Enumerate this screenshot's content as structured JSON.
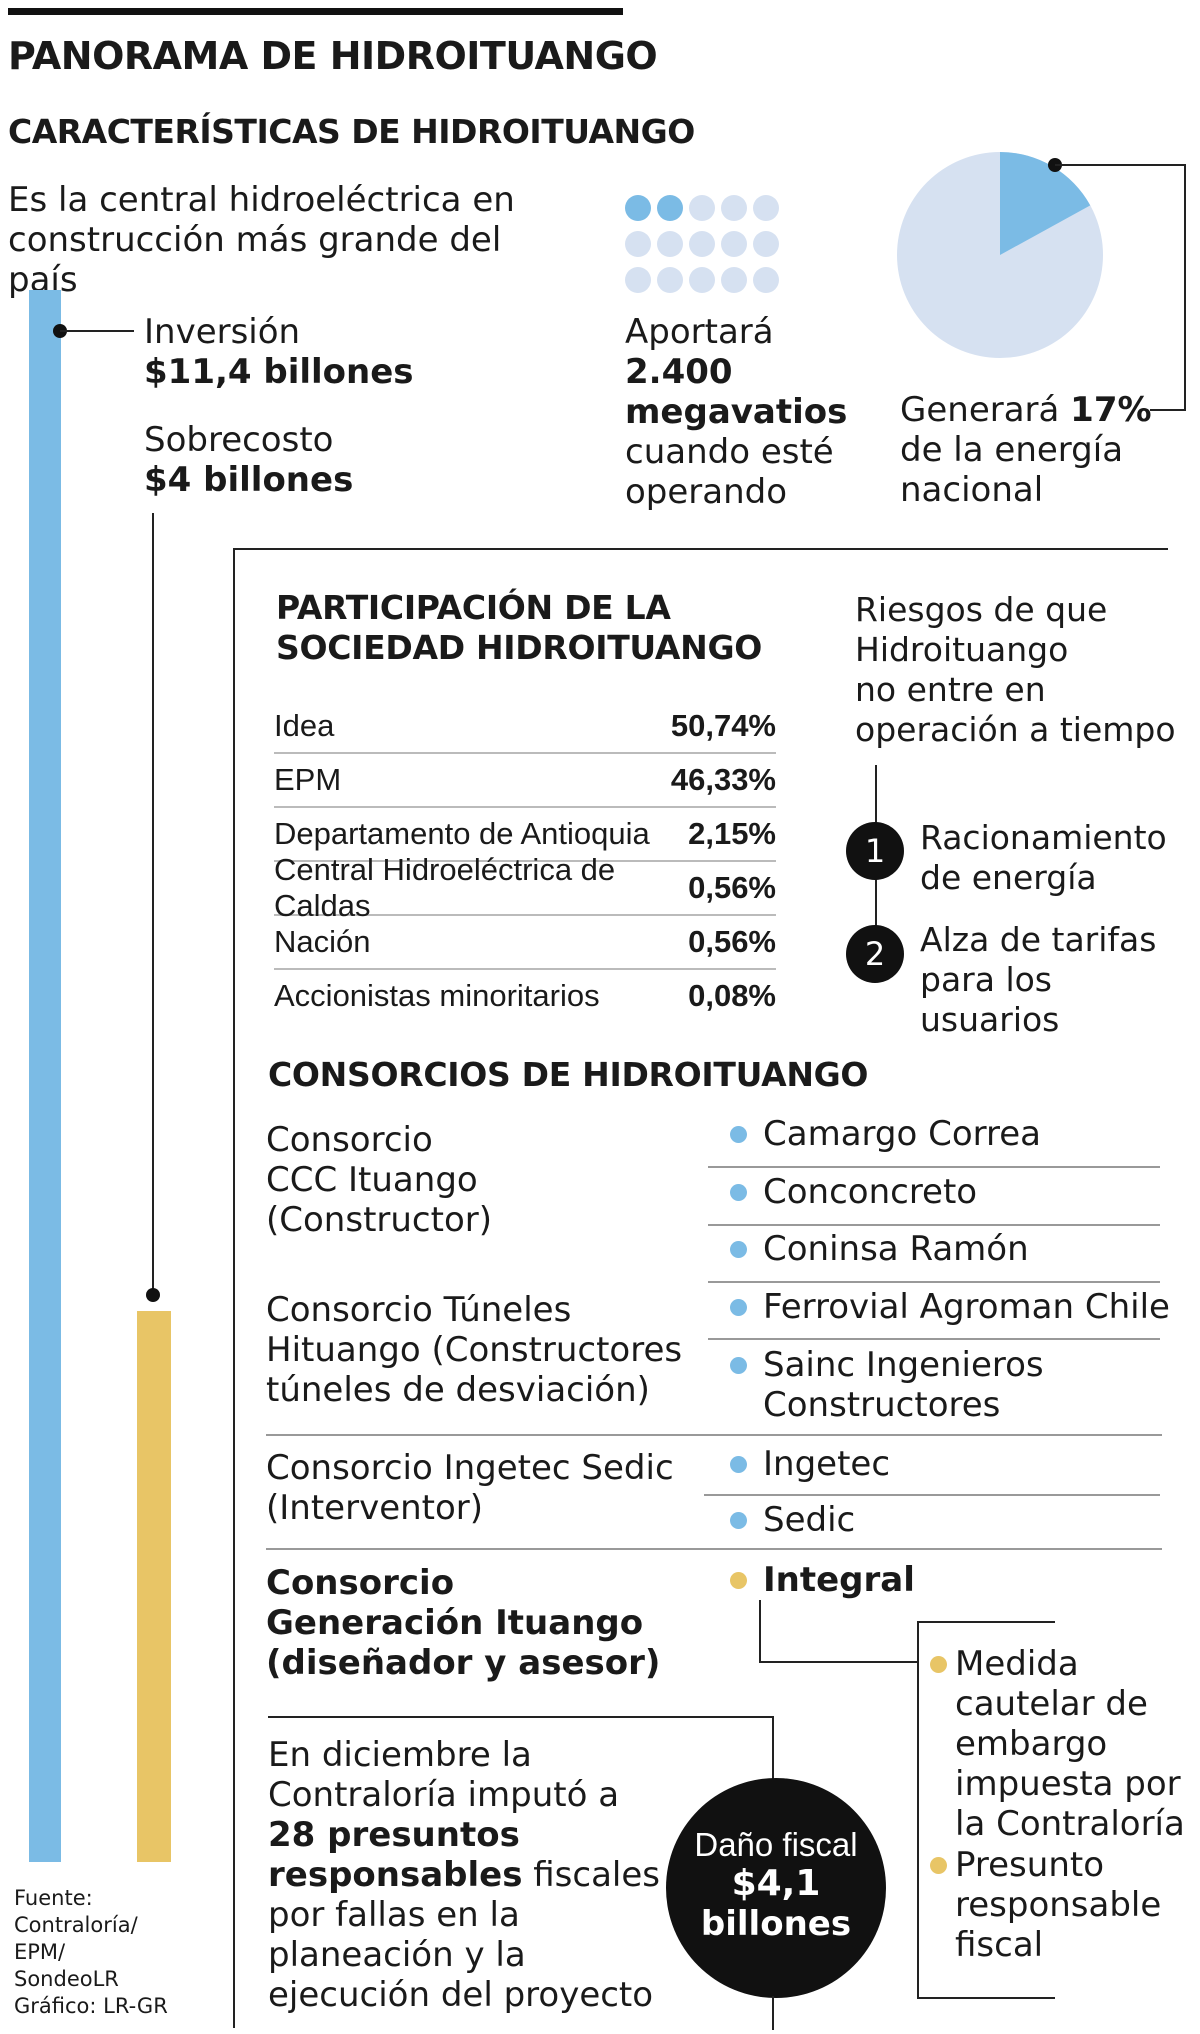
{
  "title": "PANORAMA DE HIDROITUANGO",
  "subtitle": "CARACTERÍSTICAS DE HIDROITUANGO",
  "intro": [
    "Es la central hidroeléctrica en",
    "construcción más grande del país"
  ],
  "inversion": {
    "label": "Inversión",
    "value": "$11,4 billones"
  },
  "sobrecosto": {
    "label": "Sobrecosto",
    "value": "$4 billones"
  },
  "megavatios": {
    "line1": "Aportará",
    "line2": "2.400",
    "line3": "megavatios",
    "line4": "cuando esté",
    "line5": "operando",
    "dots_total": 15,
    "dots_on": 2
  },
  "energia": {
    "prefix": "Generará ",
    "pct": "17%",
    "line2": "de la energía",
    "line3": "nacional",
    "share": 0.17
  },
  "participacion": {
    "title_line1": "PARTICIPACIÓN DE LA",
    "title_line2": "SOCIEDAD HIDROITUANGO",
    "rows": [
      {
        "name": "Idea",
        "value": "50,74%"
      },
      {
        "name": "EPM",
        "value": "46,33%"
      },
      {
        "name": "Departamento de Antioquia",
        "value": "2,15%"
      },
      {
        "name": "Central Hidroeléctrica de Caldas",
        "value": "0,56%"
      },
      {
        "name": "Nación",
        "value": "0,56%"
      },
      {
        "name": "Accionistas minoritarios",
        "value": "0,08%"
      }
    ]
  },
  "riesgos": {
    "title": [
      "Riesgos de que",
      "Hidroituango",
      "no entre en",
      "operación a tiempo"
    ],
    "items": [
      {
        "num": "1",
        "lines": [
          "Racionamiento",
          "de energía"
        ]
      },
      {
        "num": "2",
        "lines": [
          "Alza de tarifas",
          "para los usuarios"
        ]
      }
    ]
  },
  "consorcios": {
    "title": "CONSORCIOS DE HIDROITUANGO",
    "groups": [
      {
        "name": [
          "Consorcio",
          "CCC Ituango",
          "(Constructor)"
        ]
      },
      {
        "name": [
          "Consorcio Túneles",
          "Hituango (Constructores",
          "túneles de desviación)"
        ]
      },
      {
        "name": [
          "Consorcio Ingetec Sedic",
          "(Interventor)"
        ]
      },
      {
        "name": [
          "Consorcio",
          "Generación Ituango",
          "(diseñador y asesor)"
        ]
      }
    ],
    "members": {
      "camargo": "Camargo Correa",
      "conconcreto": "Conconcreto",
      "coninsa": "Coninsa Ramón",
      "ferrovial": "Ferrovial Agroman Chile",
      "sainc1": "Sainc Ingenieros",
      "sainc2": "Constructores",
      "ingetec": "Ingetec",
      "sedic": "Sedic",
      "integral": "Integral"
    }
  },
  "integral_notes": {
    "medida": [
      "Medida",
      "cautelar de",
      "embargo",
      "impuesta por",
      "la Contraloría"
    ],
    "presunto": [
      "Presunto",
      "responsable",
      "fiscal"
    ]
  },
  "contraloria": {
    "l1": "En diciembre la",
    "l2": "Contraloría imputó a",
    "l3": "28 presuntos",
    "l4b": "responsables",
    "l4": " fiscales",
    "l5": "por fallas en la",
    "l6": "planeación y la",
    "l7": "ejecución del proyecto"
  },
  "dano": {
    "label": "Daño fiscal",
    "value1": "$4,1",
    "value2": "billones"
  },
  "fuente": [
    "Fuente:",
    "Contraloría/",
    "EPM/",
    "SondeoLR",
    "Gráfico: LR-GR"
  ],
  "colors": {
    "blue": "#7bbbe5",
    "gold": "#e8c566",
    "light_blue": "#d6e1f1"
  }
}
